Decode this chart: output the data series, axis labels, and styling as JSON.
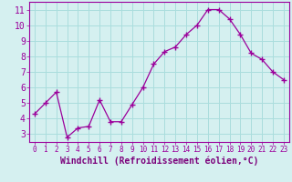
{
  "x": [
    0,
    1,
    2,
    3,
    4,
    5,
    6,
    7,
    8,
    9,
    10,
    11,
    12,
    13,
    14,
    15,
    16,
    17,
    18,
    19,
    20,
    21,
    22,
    23
  ],
  "y": [
    4.3,
    5.0,
    5.7,
    2.8,
    3.4,
    3.5,
    5.2,
    3.8,
    3.8,
    4.9,
    6.0,
    7.5,
    8.3,
    8.6,
    9.4,
    10.0,
    11.0,
    11.0,
    10.4,
    9.4,
    8.2,
    7.8,
    7.0,
    6.5
  ],
  "line_color": "#9b009b",
  "marker": "+",
  "marker_size": 4,
  "bg_color": "#d5f0f0",
  "grid_color": "#aadddd",
  "xlabel": "Windchill (Refroidissement éolien,°C)",
  "xlabel_color": "#7b007b",
  "ylabel_ticks": [
    3,
    4,
    5,
    6,
    7,
    8,
    9,
    10,
    11
  ],
  "xlim": [
    -0.5,
    23.5
  ],
  "ylim": [
    2.5,
    11.5
  ],
  "tick_fontsize": 5.5,
  "xlabel_fontsize": 7,
  "ytick_fontsize": 7
}
